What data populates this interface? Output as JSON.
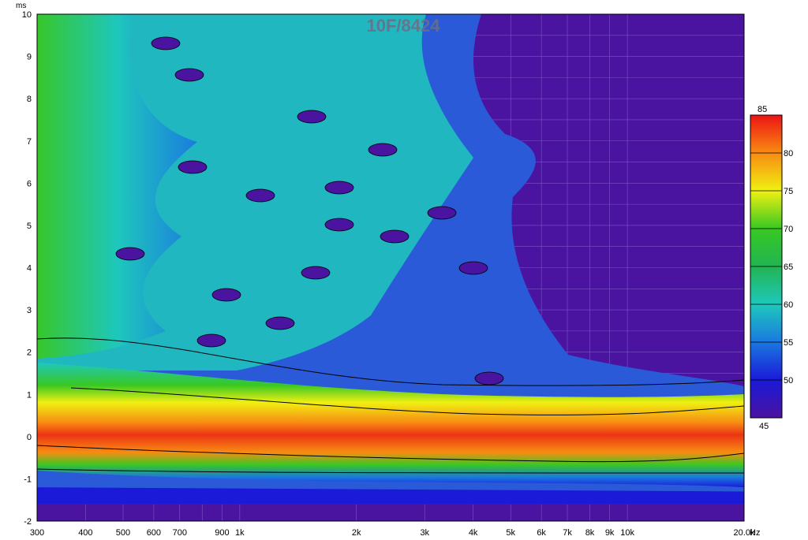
{
  "chart_data": {
    "type": "heatmap",
    "title": "10F/8424",
    "ylabel": "ms",
    "xlabel": "Hz",
    "x_scale": "log",
    "xlim": [
      300,
      20000
    ],
    "ylim": [
      -2,
      10
    ],
    "x_ticks": [
      {
        "value": 300,
        "label": "300"
      },
      {
        "value": 400,
        "label": "400"
      },
      {
        "value": 500,
        "label": "500"
      },
      {
        "value": 600,
        "label": "600"
      },
      {
        "value": 700,
        "label": "700"
      },
      {
        "value": 900,
        "label": "900"
      },
      {
        "value": 1000,
        "label": "1k"
      },
      {
        "value": 2000,
        "label": "2k"
      },
      {
        "value": 3000,
        "label": "3k"
      },
      {
        "value": 4000,
        "label": "4k"
      },
      {
        "value": 5000,
        "label": "5k"
      },
      {
        "value": 6000,
        "label": "6k"
      },
      {
        "value": 7000,
        "label": "7k"
      },
      {
        "value": 8000,
        "label": "8k"
      },
      {
        "value": 9000,
        "label": "9k"
      },
      {
        "value": 10000,
        "label": "10k"
      },
      {
        "value": 20000,
        "label": "20.0k"
      }
    ],
    "y_ticks": [
      -2,
      -1,
      0,
      1,
      2,
      3,
      4,
      5,
      6,
      7,
      8,
      9,
      10
    ],
    "colorbar": {
      "min": 45,
      "max": 85,
      "ticks": [
        45,
        50,
        55,
        60,
        65,
        70,
        75,
        80,
        85
      ],
      "stops": [
        {
          "value": 45,
          "color": "#4a13a0"
        },
        {
          "value": 50,
          "color": "#1a1ad8"
        },
        {
          "value": 55,
          "color": "#1a78e0"
        },
        {
          "value": 60,
          "color": "#1ec8bc"
        },
        {
          "value": 65,
          "color": "#22b452"
        },
        {
          "value": 70,
          "color": "#38c822"
        },
        {
          "value": 75,
          "color": "#f0f012"
        },
        {
          "value": 80,
          "color": "#f88c12"
        },
        {
          "value": 85,
          "color": "#ec1414"
        }
      ]
    },
    "grid": true,
    "colors": {
      "floor": "#4a13a0",
      "grid": "#7a55c8",
      "contour": "#000000"
    }
  }
}
